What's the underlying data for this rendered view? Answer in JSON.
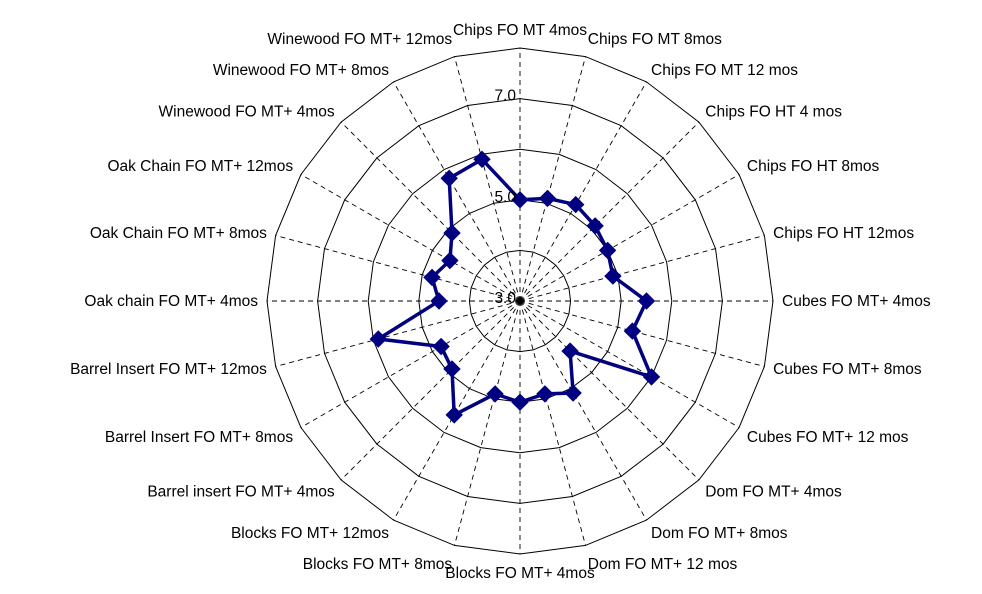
{
  "chart_data": {
    "type": "radar",
    "title": "",
    "categories": [
      "Chips FO MT 4mos",
      "Chips FO MT 8mos",
      "Chips FO MT 12 mos",
      "Chips FO HT 4 mos",
      "Chips FO HT 8mos",
      "Chips FO HT 12mos",
      "Cubes FO MT+ 4mos",
      "Cubes FO MT+ 8mos",
      "Cubes FO MT+ 12 mos",
      "Dom FO MT+ 4mos",
      "Dom FO MT+ 8mos",
      "Dom FO MT+ 12 mos",
      "Blocks FO MT+ 4mos",
      "Blocks FO MT+ 8mos",
      "Blocks FO MT+ 12mos",
      "Barrel insert FO MT+ 4mos",
      "Barrel Insert FO MT+ 8mos",
      "Barrel Insert FO MT+ 12mos",
      "Oak chain FO MT+ 4mos",
      "Oak Chain FO MT+ 8mos",
      "Oak Chain FO MT+ 12mos",
      "Winewood FO MT+ 4mos",
      "Winewood FO MT+ 8mos",
      "Winewood FO MT+ 12mos"
    ],
    "series": [
      {
        "values": [
          5.0,
          5.1,
          5.2,
          5.1,
          5.0,
          4.9,
          5.5,
          5.3,
          6.0,
          4.4,
          5.1,
          4.9,
          5.0,
          4.9,
          5.6,
          4.9,
          4.8,
          5.9,
          4.6,
          4.8,
          4.6,
          4.9,
          5.8,
          5.9
        ],
        "color": "#000080"
      }
    ],
    "r_range": [
      3.0,
      8.0
    ],
    "ticks": [
      "3.0",
      "5.0",
      "7.0"
    ],
    "gridlines": true
  }
}
